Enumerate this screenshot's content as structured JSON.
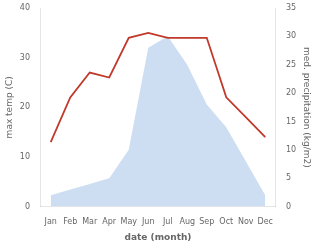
{
  "chart_data": {
    "type": "line",
    "xlabel": "date (month)",
    "ylabel": "max temp (C)",
    "y2label": "med. precipitation (kg/m2)",
    "categories": [
      "Jan",
      "Feb",
      "Mar",
      "Apr",
      "May",
      "Jun",
      "Jul",
      "Aug",
      "Sep",
      "Oct",
      "Nov",
      "Dec"
    ],
    "series": [
      {
        "type": "area",
        "color": "#c5d8f0",
        "axis": "y2",
        "values": [
          2,
          3,
          4,
          5,
          10,
          28,
          30,
          25,
          18,
          14,
          8,
          2
        ]
      },
      {
        "type": "line",
        "color": "#c0392b",
        "values": [
          13,
          22,
          27,
          26,
          34,
          35,
          34,
          34,
          34,
          22,
          18,
          14
        ]
      }
    ],
    "ylim": [
      0,
      40
    ],
    "yticks": [
      0,
      10,
      20,
      30,
      40
    ],
    "y2lim": [
      0,
      35
    ],
    "y2ticks": [
      0,
      5,
      10,
      15,
      20,
      25,
      30,
      35
    ],
    "grid": false
  }
}
